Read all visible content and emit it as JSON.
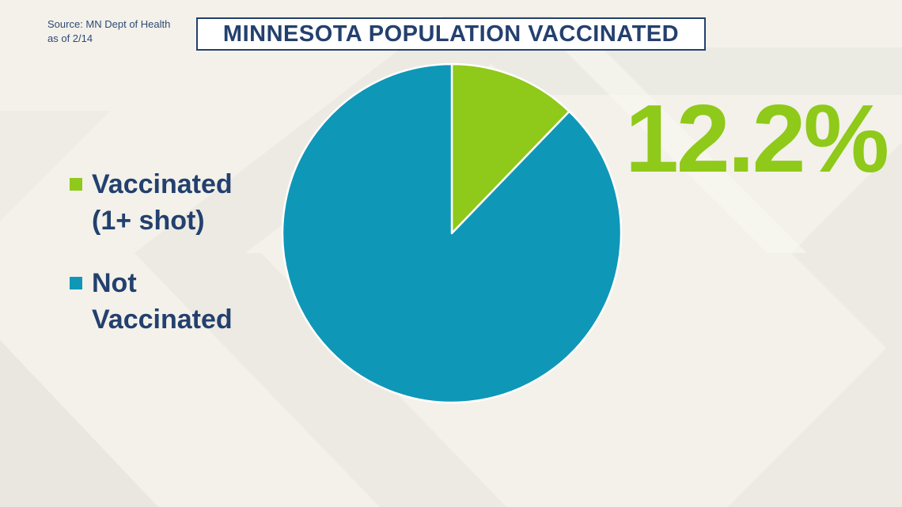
{
  "source": {
    "line1": "Source: MN Dept of Health",
    "line2": "as of 2/14"
  },
  "colors": {
    "vaccinated": "#8fc919",
    "not_vaccinated": "#0f97b7",
    "text": "#23406e"
  },
  "chart_data": {
    "type": "pie",
    "title": "MINNESOTA POPULATION VACCINATED",
    "slices": [
      {
        "label": "Vaccinated (1+ shot)",
        "value": 12.2,
        "color": "#8fc919"
      },
      {
        "label": "Not Vaccinated",
        "value": 87.8,
        "color": "#0f97b7"
      }
    ],
    "highlight_label": "12.2%",
    "legend": {
      "position": "left",
      "entries": [
        {
          "line1": "Vaccinated",
          "line2": "(1+ shot)",
          "color": "#8fc919"
        },
        {
          "line1": "Not",
          "line2": "Vaccinated",
          "color": "#0f97b7"
        }
      ]
    }
  }
}
